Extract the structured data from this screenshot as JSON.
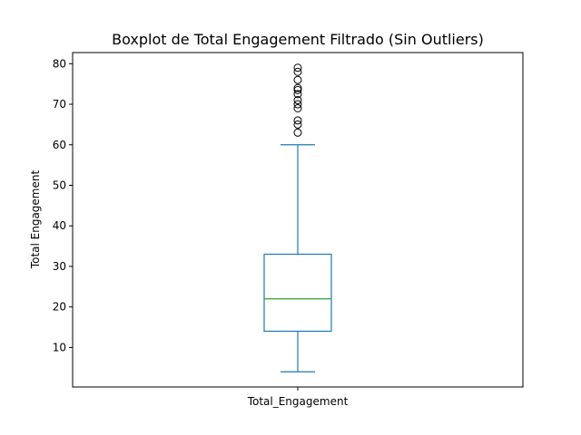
{
  "chart_data": {
    "type": "box",
    "title": "Boxplot de Total Engagement Filtrado (Sin Outliers)",
    "xlabel": "",
    "ylabel": "Total Engagement",
    "categories": [
      "Total_Engagement"
    ],
    "ylim": [
      0.25,
      82.75
    ],
    "yticks": [
      10,
      20,
      30,
      40,
      50,
      60,
      70,
      80
    ],
    "grid": false,
    "box": {
      "whisker_low": 4,
      "q1": 14,
      "median": 22,
      "q3": 33,
      "whisker_high": 60
    },
    "outliers": [
      63,
      65,
      66,
      69,
      70,
      71,
      72.5,
      73.5,
      74,
      76,
      78,
      79
    ],
    "colors": {
      "box": "#1f77b4",
      "median": "#2ca02c",
      "outlier": "#000000",
      "axes": "#000000"
    }
  }
}
